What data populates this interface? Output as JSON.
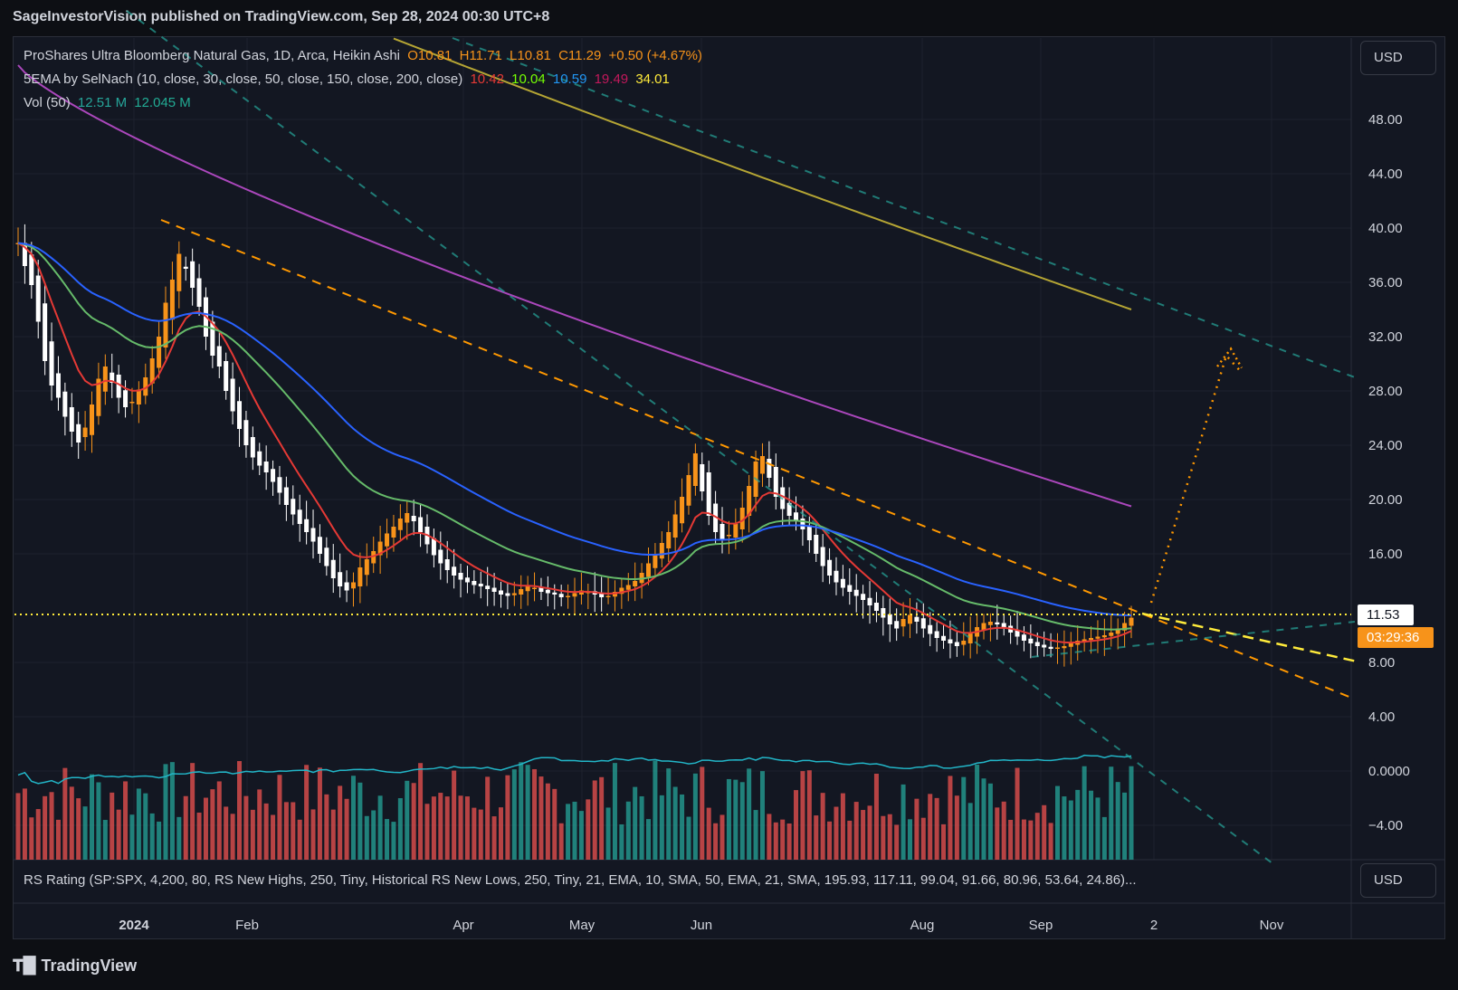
{
  "header": {
    "published_text": "SageInvestorVision published on TradingView.com, Sep 28, 2024 00:30 UTC+8"
  },
  "legend": {
    "symbol_title": "ProShares Ultra Bloomberg Natural Gas, 1D, Arca, Heikin Ashi",
    "open": "O10.81",
    "high": "H11.71",
    "low": "L10.81",
    "close": "C11.29",
    "change": "+0.50 (+4.67%)",
    "ema_title": "5EMA by SelNach (10, close, 30, close, 50, close, 150, close, 200, close)",
    "ema_values": [
      {
        "value": "10.42",
        "color": "#e53935"
      },
      {
        "value": "10.04",
        "color": "#76ff03"
      },
      {
        "value": "10.59",
        "color": "#2196f3"
      },
      {
        "value": "19.49",
        "color": "#c2185b"
      },
      {
        "value": "34.01",
        "color": "#ffeb3b"
      }
    ],
    "vol_title": "Vol (50)",
    "vol_value": "12.51 M",
    "vol_ma": "12.045 M"
  },
  "currency_button": "USD",
  "currency_button_lower": "USD",
  "price_tags": {
    "last_price": "11.53",
    "countdown": "03:29:36"
  },
  "rs_legend": "RS Rating (SP:SPX, 4,200, 80, RS New Highs, 250, Tiny, Historical RS New Lows, 250, Tiny, 21, EMA, 10, SMA, 50, EMA, 21, SMA, 195.93, 117.11, 99.04, 91.66, 80.96, 53.64, 24.86)...",
  "footer_brand": "TradingView",
  "chart_data": {
    "type": "candlestick",
    "style": "Heikin Ashi",
    "colors": {
      "up": "#f7931a",
      "down": "#ffffff",
      "vol_up": "#26a69a",
      "vol_down": "#ef5350",
      "ema10": "#e53935",
      "ema30": "#66bb6a",
      "ema50": "#2962ff",
      "ema150": "#ab47bc",
      "ema200": "#ffeb3b",
      "trend": "#ff9800",
      "channel": "#26a69a"
    },
    "y_axis_ticks": [
      "48.00",
      "44.00",
      "40.00",
      "36.00",
      "32.00",
      "28.00",
      "24.00",
      "20.00",
      "16.00",
      "8.00",
      "4.00",
      "0.0000",
      "−4.00"
    ],
    "y_axis_values": [
      48,
      44,
      40,
      36,
      32,
      28,
      24,
      20,
      16,
      8,
      4,
      0,
      -4
    ],
    "x_axis_labels": [
      "2024",
      "Feb",
      "Apr",
      "May",
      "Jun",
      "Aug",
      "Sep",
      "2",
      "Nov"
    ],
    "price_range_shown": [
      -6,
      52
    ],
    "last_price": 11.53,
    "closes": [
      38.9,
      37.2,
      35.8,
      33.1,
      30.2,
      28.4,
      27.5,
      26.1,
      25.0,
      24.2,
      25.3,
      27.0,
      28.9,
      29.8,
      28.6,
      27.5,
      26.8,
      27.2,
      28.1,
      29.0,
      30.4,
      32.0,
      34.5,
      36.2,
      38.1,
      37.0,
      35.6,
      34.2,
      32.0,
      30.6,
      29.8,
      28.0,
      26.5,
      25.2,
      24.0,
      23.1,
      22.5,
      22.0,
      21.3,
      20.5,
      19.6,
      18.9,
      18.2,
      17.6,
      16.9,
      16.0,
      15.1,
      14.2,
      13.6,
      13.3,
      13.9,
      15.0,
      15.6,
      16.2,
      16.9,
      17.5,
      18.0,
      18.6,
      19.0,
      18.4,
      17.6,
      16.7,
      15.9,
      15.3,
      14.8,
      14.4,
      14.1,
      13.9,
      13.7,
      13.6,
      13.4,
      13.2,
      13.0,
      12.9,
      13.1,
      13.4,
      13.6,
      13.5,
      13.2,
      13.1,
      13.0,
      12.8,
      12.9,
      13.1,
      13.3,
      13.2,
      13.0,
      12.8,
      12.9,
      13.2,
      13.5,
      13.7,
      14.0,
      14.6,
      15.3,
      16.0,
      16.8,
      17.6,
      18.9,
      20.2,
      21.8,
      23.4,
      20.6,
      18.8,
      17.6,
      17.0,
      17.4,
      18.2,
      19.4,
      21.0,
      22.8,
      23.2,
      21.6,
      20.2,
      19.3,
      18.8,
      18.4,
      17.8,
      17.0,
      16.0,
      15.1,
      14.4,
      13.9,
      13.5,
      13.2,
      12.9,
      12.6,
      12.2,
      11.8,
      11.3,
      10.8,
      10.5,
      11.2,
      11.5,
      11.0,
      10.5,
      10.1,
      9.8,
      9.6,
      9.4,
      9.2,
      9.6,
      10.2,
      10.6,
      10.9,
      11.0,
      10.8,
      10.6,
      10.2,
      9.9,
      9.6,
      9.4,
      9.2,
      9.1,
      9.0,
      9.1,
      9.2,
      9.4,
      9.6,
      9.7,
      9.8,
      9.9,
      10.0,
      10.2,
      10.5,
      10.9,
      11.29
    ],
    "ema_last": {
      "ema10": 10.42,
      "ema30": 10.04,
      "ema50": 10.59,
      "ema150": 19.49,
      "ema200": 34.01
    },
    "volume_ma_last_millions": 12.045,
    "volume_last_millions": 12.51
  }
}
